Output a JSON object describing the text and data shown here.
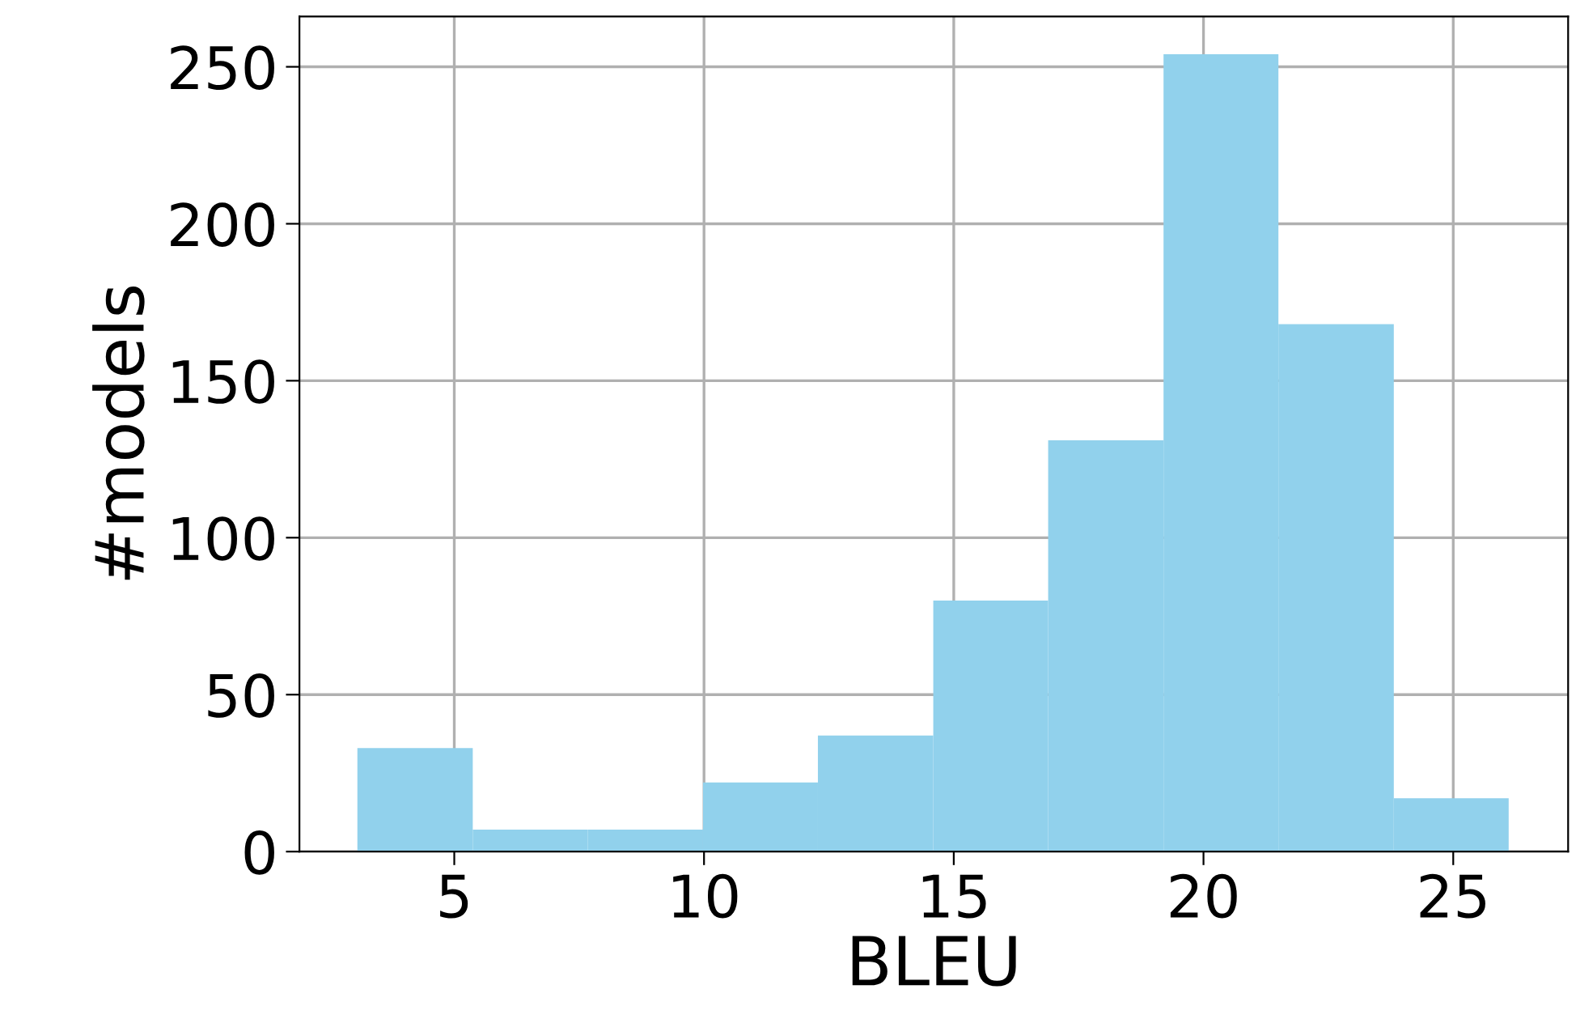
{
  "chart_data": {
    "type": "histogram",
    "xlabel": "BLEU",
    "ylabel": "#models",
    "bins": [
      3.06,
      5.37,
      7.67,
      9.98,
      12.28,
      14.59,
      16.89,
      19.2,
      21.5,
      23.81,
      26.11
    ],
    "values": [
      33,
      7,
      7,
      22,
      37,
      80,
      131,
      254,
      168,
      17
    ],
    "color": "#91d1ec",
    "xlim": [
      1.9,
      27.3
    ],
    "ylim": [
      0,
      266
    ],
    "xticks": [
      5,
      10,
      15,
      20,
      25
    ],
    "yticks": [
      0,
      50,
      100,
      150,
      200,
      250
    ],
    "grid": true
  }
}
